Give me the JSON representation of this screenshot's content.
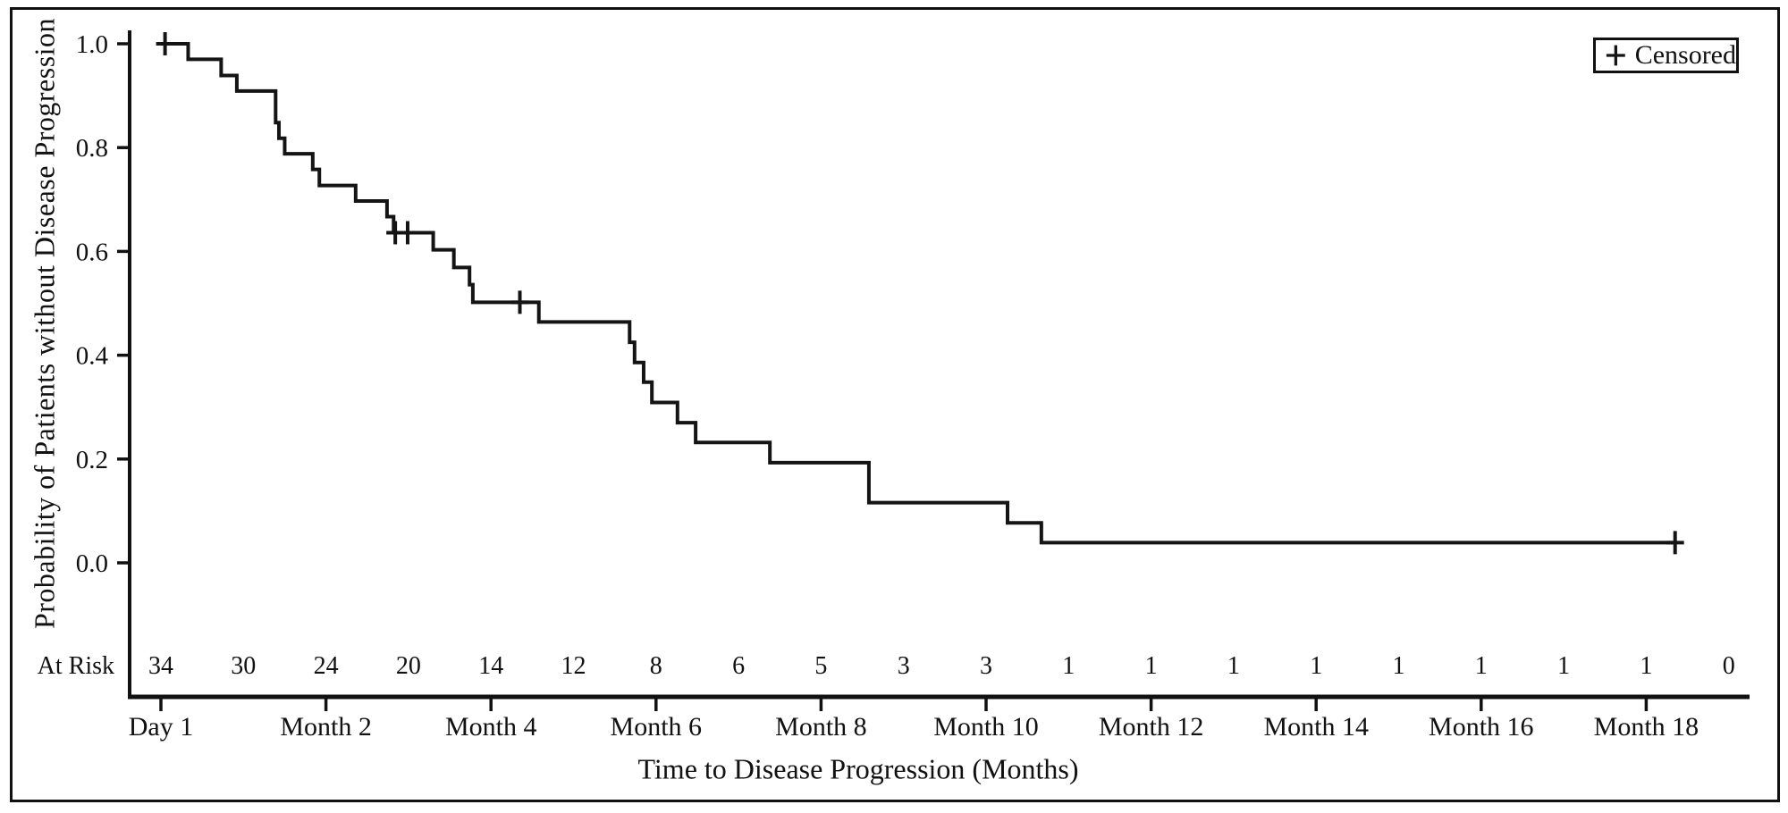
{
  "chart_data": {
    "type": "line",
    "subtype": "kaplan-meier-step",
    "title": "",
    "xlabel": "Time to Disease Progression (Months)",
    "ylabel": "Probability of Patients without Disease Progression",
    "legend_label": "Censored",
    "legend_marker": "plus-cross",
    "legend_position": "top-right",
    "grid": false,
    "line_color": "#141414",
    "x_axis": {
      "range": [
        0,
        19.25
      ],
      "ticks": [
        {
          "value": 0,
          "label": "Day 1"
        },
        {
          "value": 2,
          "label": "Month 2"
        },
        {
          "value": 4,
          "label": "Month 4"
        },
        {
          "value": 6,
          "label": "Month 6"
        },
        {
          "value": 8,
          "label": "Month 8"
        },
        {
          "value": 10,
          "label": "Month 10"
        },
        {
          "value": 12,
          "label": "Month 12"
        },
        {
          "value": 14,
          "label": "Month 14"
        },
        {
          "value": 16,
          "label": "Month 16"
        },
        {
          "value": 18,
          "label": "Month 18"
        }
      ]
    },
    "y_axis": {
      "range": [
        0.0,
        1.0
      ],
      "ticks": [
        {
          "value": 1.0,
          "label": "1.0"
        },
        {
          "value": 0.8,
          "label": "0.8"
        },
        {
          "value": 0.6,
          "label": "0.6"
        },
        {
          "value": 0.4,
          "label": "0.4"
        },
        {
          "value": 0.2,
          "label": "0.2"
        },
        {
          "value": 0.0,
          "label": "0.0"
        }
      ]
    },
    "at_risk": {
      "label": "At Risk",
      "months": [
        0,
        1,
        2,
        3,
        4,
        5,
        6,
        7,
        8,
        9,
        10,
        11,
        12,
        13,
        14,
        15,
        16,
        17,
        18,
        19
      ],
      "counts": [
        34,
        30,
        24,
        20,
        14,
        12,
        8,
        6,
        5,
        3,
        3,
        1,
        1,
        1,
        1,
        1,
        1,
        1,
        1,
        0
      ]
    },
    "curve": {
      "comment": "points = [time_months, survival_probability_after_drop]; step function",
      "points": [
        [
          0.0,
          1.0
        ],
        [
          0.33,
          0.97
        ],
        [
          0.73,
          0.939
        ],
        [
          0.92,
          0.909
        ],
        [
          1.39,
          0.848
        ],
        [
          1.43,
          0.818
        ],
        [
          1.5,
          0.788
        ],
        [
          1.84,
          0.758
        ],
        [
          1.92,
          0.727
        ],
        [
          2.36,
          0.697
        ],
        [
          2.74,
          0.667
        ],
        [
          2.82,
          0.636
        ],
        [
          3.3,
          0.603
        ],
        [
          3.55,
          0.569
        ],
        [
          3.74,
          0.536
        ],
        [
          3.78,
          0.502
        ],
        [
          4.58,
          0.464
        ],
        [
          5.68,
          0.425
        ],
        [
          5.74,
          0.386
        ],
        [
          5.85,
          0.348
        ],
        [
          5.95,
          0.309
        ],
        [
          6.26,
          0.27
        ],
        [
          6.48,
          0.232
        ],
        [
          7.38,
          0.193
        ],
        [
          8.58,
          0.116
        ],
        [
          10.26,
          0.077
        ],
        [
          10.67,
          0.039
        ]
      ],
      "end_t": 18.35
    },
    "censors": [
      [
        0.05,
        1.0
      ],
      [
        2.84,
        0.636
      ],
      [
        2.99,
        0.636
      ],
      [
        4.35,
        0.502
      ],
      [
        18.35,
        0.039
      ]
    ]
  }
}
